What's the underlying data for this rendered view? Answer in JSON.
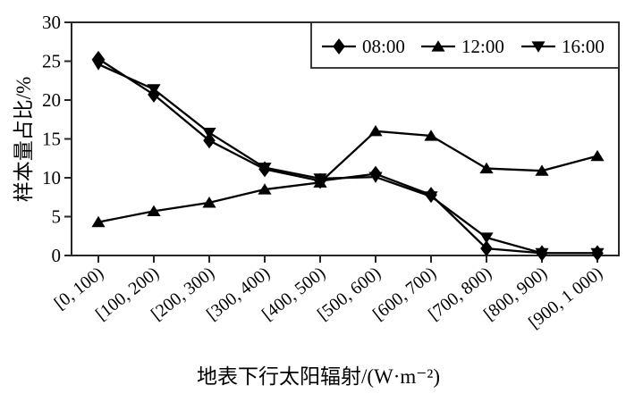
{
  "chart_data": {
    "type": "line",
    "title": "",
    "categories": [
      "[0, 100)",
      "[100, 200)",
      "[200, 300)",
      "[300, 400)",
      "[400, 500)",
      "[500, 600)",
      "[600, 700)",
      "[700, 800)",
      "[800, 900)",
      "[900, 1 000)"
    ],
    "series": [
      {
        "name": "08:00",
        "marker": "diamond",
        "values": [
          25.3,
          20.7,
          14.8,
          11.1,
          9.6,
          10.5,
          7.8,
          0.9,
          0.3,
          0.3
        ]
      },
      {
        "name": "12:00",
        "marker": "triangle-up",
        "values": [
          4.3,
          5.7,
          6.8,
          8.5,
          9.4,
          16.0,
          15.4,
          11.2,
          10.9,
          12.8
        ]
      },
      {
        "name": "16:00",
        "marker": "triangle-down",
        "values": [
          24.6,
          21.4,
          15.8,
          11.3,
          9.9,
          10.1,
          7.6,
          2.3,
          0.3,
          0.3
        ]
      }
    ],
    "xlabel": "地表下行太阳辐射/(W·m⁻²)",
    "ylabel": "样本量占比/%",
    "ylim": [
      0,
      30
    ],
    "yticks": [
      0,
      5,
      10,
      15,
      20,
      25,
      30
    ],
    "grid": false,
    "legend_position": "top-right",
    "colors": {
      "line": "#000000",
      "marker": "#000000",
      "frame": "#262626",
      "text": "#000000",
      "background": "#ffffff"
    }
  }
}
